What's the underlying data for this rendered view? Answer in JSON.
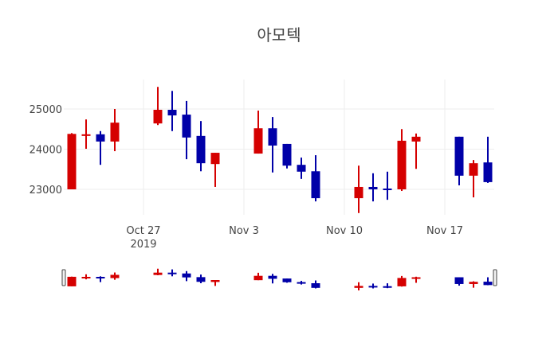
{
  "chart_data": {
    "type": "candlestick",
    "title": "아모텍",
    "xlabel": "",
    "ylabel": "",
    "x_tick_labels": [
      "Oct 27\n2019",
      "Nov 3",
      "Nov 10",
      "Nov 17"
    ],
    "y_tick_labels": [
      "23000",
      "24000",
      "25000"
    ],
    "ylim": [
      22300,
      25750
    ],
    "grid": true,
    "increasing_color": "#d50000",
    "decreasing_color": "#0000a8",
    "range_slider": true,
    "candles": [
      {
        "date": "2019-10-22",
        "open": 23000,
        "high": 24400,
        "low": 23000,
        "close": 24380
      },
      {
        "date": "2019-10-23",
        "open": 24330,
        "high": 24740,
        "low": 24010,
        "close": 24370
      },
      {
        "date": "2019-10-24",
        "open": 24370,
        "high": 24450,
        "low": 23610,
        "close": 24190
      },
      {
        "date": "2019-10-25",
        "open": 24190,
        "high": 25000,
        "low": 23950,
        "close": 24660
      },
      {
        "date": "2019-10-28",
        "open": 24640,
        "high": 25550,
        "low": 24600,
        "close": 24980
      },
      {
        "date": "2019-10-29",
        "open": 24980,
        "high": 25450,
        "low": 24450,
        "close": 24840
      },
      {
        "date": "2019-10-30",
        "open": 24860,
        "high": 25200,
        "low": 23750,
        "close": 24290
      },
      {
        "date": "2019-10-31",
        "open": 24330,
        "high": 24700,
        "low": 23450,
        "close": 23650
      },
      {
        "date": "2019-11-01",
        "open": 23630,
        "high": 23910,
        "low": 23060,
        "close": 23910
      },
      {
        "date": "2019-11-04",
        "open": 23890,
        "high": 24960,
        "low": 23890,
        "close": 24520
      },
      {
        "date": "2019-11-05",
        "open": 24520,
        "high": 24800,
        "low": 23420,
        "close": 24090
      },
      {
        "date": "2019-11-06",
        "open": 24130,
        "high": 24130,
        "low": 23520,
        "close": 23590
      },
      {
        "date": "2019-11-07",
        "open": 23610,
        "high": 23790,
        "low": 23260,
        "close": 23440
      },
      {
        "date": "2019-11-08",
        "open": 23450,
        "high": 23850,
        "low": 22700,
        "close": 22780
      },
      {
        "date": "2019-11-11",
        "open": 22780,
        "high": 23590,
        "low": 22410,
        "close": 23060
      },
      {
        "date": "2019-11-12",
        "open": 23060,
        "high": 23400,
        "low": 22700,
        "close": 23000
      },
      {
        "date": "2019-11-13",
        "open": 23020,
        "high": 23440,
        "low": 22740,
        "close": 22980
      },
      {
        "date": "2019-11-14",
        "open": 23000,
        "high": 24500,
        "low": 22960,
        "close": 24210
      },
      {
        "date": "2019-11-15",
        "open": 24190,
        "high": 24390,
        "low": 23510,
        "close": 24310
      },
      {
        "date": "2019-11-18",
        "open": 24310,
        "high": 24310,
        "low": 23100,
        "close": 23340
      },
      {
        "date": "2019-11-19",
        "open": 23340,
        "high": 23730,
        "low": 22800,
        "close": 23650
      },
      {
        "date": "2019-11-20",
        "open": 23670,
        "high": 24310,
        "low": 23160,
        "close": 23180
      }
    ]
  }
}
